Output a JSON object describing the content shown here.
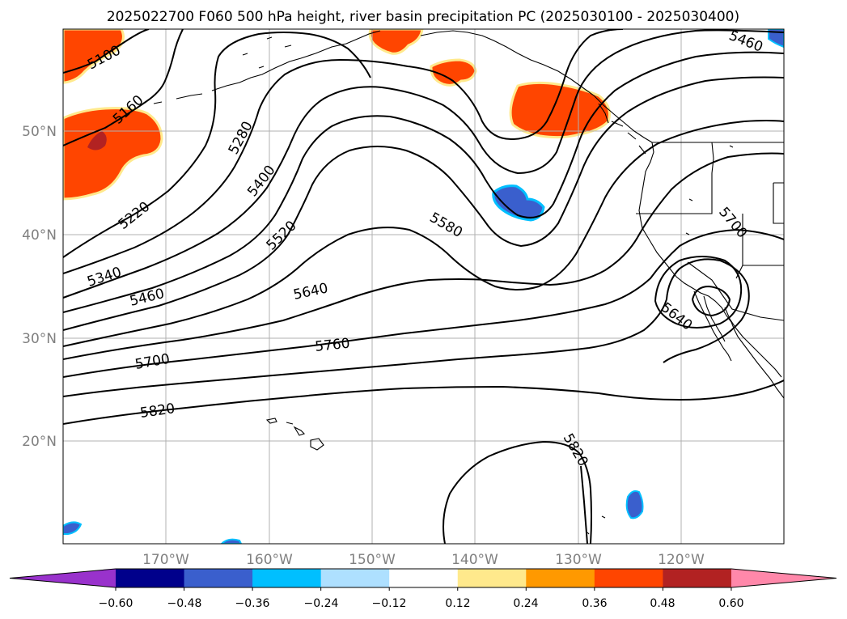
{
  "title": "2025022700 F060 500 hPa height, river basin precipitation PC (2025030100 - 2025030400)",
  "colors": {
    "coast": "#000000",
    "grid": "#b0b0b0",
    "contour": "#000000",
    "pos_light": "#ffe98c",
    "pos_orange": "#ff9900",
    "pos_red": "#ff4500",
    "pos_dark": "#b22222",
    "neg_pale": "#aee0ff",
    "neg_sky": "#00bfff",
    "neg_blue": "#3a5fcd"
  },
  "map": {
    "lat_labels": [
      "50°N",
      "40°N",
      "30°N",
      "20°N"
    ],
    "lon_labels": [
      "170°W",
      "160°W",
      "150°W",
      "140°W",
      "130°W",
      "120°W"
    ],
    "contour_labels": [
      "5100",
      "5160",
      "5220",
      "5280",
      "5340",
      "5400",
      "5460",
      "5520",
      "5580",
      "5640",
      "5700",
      "5760",
      "5820",
      "5460",
      "5700",
      "5640",
      "5820"
    ]
  },
  "colorbar": {
    "ticks": [
      "−0.60",
      "−0.48",
      "−0.36",
      "−0.24",
      "−0.12",
      "0.12",
      "0.24",
      "0.36",
      "0.48",
      "0.60"
    ],
    "colors": [
      "#9932cc",
      "#00008b",
      "#3a5fcd",
      "#00bfff",
      "#aee0ff",
      "#ffffff",
      "#ffe98c",
      "#ff9900",
      "#ff4500",
      "#b22222",
      "#ff88aa"
    ]
  }
}
